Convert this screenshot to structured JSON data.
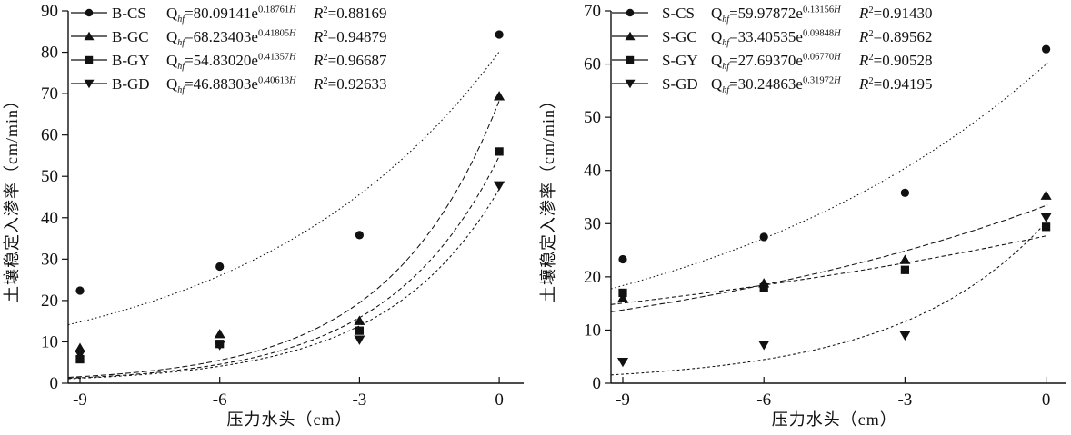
{
  "figure": {
    "background": "#ffffff",
    "ink": "#111111"
  },
  "chart_data": [
    {
      "id": "left",
      "type": "scatter",
      "title": "",
      "xlabel": "压力水头（cm）",
      "ylabel": "土壤稳定入渗率（cm/min）",
      "xticks": [
        -9,
        -6,
        -3,
        0
      ],
      "xlim": [
        -9.25,
        0.5
      ],
      "ylim": [
        0,
        90
      ],
      "ytick_step": 10,
      "x": [
        -9,
        -6,
        -3,
        0
      ],
      "legend_position": "top-left-inside",
      "grid": false,
      "q_symbol": "Q",
      "q_subscript": "hf",
      "exponent_variable": "H",
      "series": [
        {
          "name": "B-CS",
          "marker": "circle",
          "line_style": "dotted",
          "values": [
            22.4,
            28.2,
            35.8,
            84.3
          ],
          "fit_A": "80.09141",
          "fit_b": "0.18761",
          "r2": "0.88169"
        },
        {
          "name": "B-GC",
          "marker": "triangle-up",
          "line_style": "dashed",
          "values": [
            8.5,
            11.9,
            15.1,
            69.4
          ],
          "fit_A": "68.23403",
          "fit_b": "0.41805",
          "r2": "0.94879"
        },
        {
          "name": "B-GY",
          "marker": "square",
          "line_style": "dashed",
          "values": [
            5.8,
            9.5,
            12.7,
            56.0
          ],
          "fit_A": "54.83020",
          "fit_b": "0.41357",
          "r2": "0.96687"
        },
        {
          "name": "B-GD",
          "marker": "triangle-down",
          "line_style": "dashed",
          "values": [
            7.0,
            9.2,
            10.5,
            47.8
          ],
          "fit_A": "46.88303",
          "fit_b": "0.40613",
          "r2": "0.92633"
        }
      ]
    },
    {
      "id": "right",
      "type": "scatter",
      "title": "",
      "xlabel": "压力水头（cm）",
      "ylabel": "土壤稳定入渗率（cm/min）",
      "xticks": [
        -9,
        -6,
        -3,
        0
      ],
      "xlim": [
        -9.25,
        0.45
      ],
      "ylim": [
        0,
        70
      ],
      "ytick_step": 10,
      "x": [
        -9,
        -6,
        -3,
        0
      ],
      "legend_position": "top-left-inside",
      "grid": false,
      "q_symbol": "Q",
      "q_subscript": "hf",
      "exponent_variable": "H",
      "series": [
        {
          "name": "S-CS",
          "marker": "circle",
          "line_style": "dotted",
          "values": [
            23.3,
            27.5,
            35.8,
            62.8
          ],
          "fit_A": "59.97872",
          "fit_b": "0.13156",
          "r2": "0.91430"
        },
        {
          "name": "S-GC",
          "marker": "triangle-up",
          "line_style": "dashed",
          "values": [
            16.0,
            18.8,
            23.2,
            35.3
          ],
          "fit_A": "33.40535",
          "fit_b": "0.09848",
          "r2": "0.89562"
        },
        {
          "name": "S-GY",
          "marker": "square",
          "line_style": "dashed",
          "values": [
            17.0,
            18.0,
            21.3,
            29.4
          ],
          "fit_A": "27.69370",
          "fit_b": "0.06770",
          "r2": "0.90528"
        },
        {
          "name": "S-GD",
          "marker": "triangle-down",
          "line_style": "dashed",
          "values": [
            4.0,
            7.2,
            9.0,
            31.2
          ],
          "fit_A": "30.24863",
          "fit_b": "0.31972",
          "r2": "0.94195"
        }
      ]
    }
  ]
}
